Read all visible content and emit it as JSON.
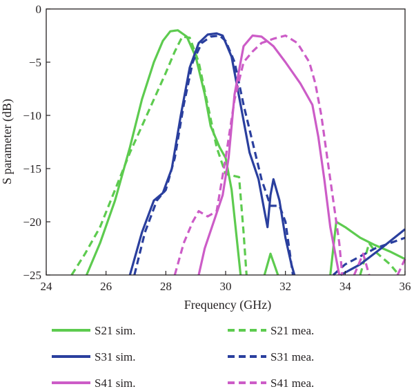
{
  "chart_data": {
    "type": "line",
    "xlabel": "Frequency (GHz)",
    "ylabel": "S parameter (dB)",
    "xlim": [
      24,
      36
    ],
    "ylim": [
      -25,
      0
    ],
    "xticks": [
      "24",
      "26",
      "28",
      "30",
      "32",
      "34",
      "36"
    ],
    "yticks": [
      "0",
      "−5",
      "−10",
      "−15",
      "−20",
      "−25"
    ],
    "grid": false,
    "legend_position": "bottom",
    "colors": {
      "S21": "#5dcb4f",
      "S31": "#2a3f9e",
      "S41": "#cc5cc7"
    },
    "series": [
      {
        "name": "S21 sim.",
        "color": "#5dcb4f",
        "dash": "solid",
        "x": [
          25.35,
          25.8,
          26.3,
          26.8,
          27.2,
          27.6,
          27.9,
          28.15,
          28.4,
          28.7,
          29.0,
          29.3,
          29.5,
          29.8,
          30.0,
          30.2,
          30.35,
          30.5
        ],
        "y": [
          -25,
          -22,
          -18,
          -13,
          -8.5,
          -5,
          -3,
          -2.1,
          -2,
          -2.6,
          -4.5,
          -8,
          -11,
          -13,
          -14,
          -17,
          -21,
          -25
        ]
      },
      {
        "name": "S21 sim.",
        "color": "#5dcb4f",
        "dash": "solid",
        "x": [
          31.3,
          31.5,
          31.75
        ],
        "y": [
          -25,
          -23,
          -25
        ]
      },
      {
        "name": "S21 sim.",
        "color": "#5dcb4f",
        "dash": "solid",
        "x": [
          33.5,
          33.7,
          34.0,
          34.5,
          35.0,
          35.5,
          36.0
        ],
        "y": [
          -25,
          -20,
          -20.5,
          -21.5,
          -22.2,
          -22.8,
          -23.5
        ]
      },
      {
        "name": "S21 mea.",
        "color": "#5dcb4f",
        "dash": "dashed",
        "x": [
          24.85,
          25.3,
          25.8,
          26.3,
          26.8,
          27.2,
          27.6,
          28.0,
          28.3,
          28.55,
          28.8,
          29.1,
          29.4,
          29.7,
          30.0,
          30.45,
          30.6,
          30.7
        ],
        "y": [
          -25,
          -23,
          -20.5,
          -17,
          -13.5,
          -11,
          -8.5,
          -6,
          -4,
          -2.6,
          -2.7,
          -5,
          -9,
          -13,
          -15.5,
          -15.8,
          -21,
          -25
        ]
      },
      {
        "name": "S21 mea.",
        "color": "#5dcb4f",
        "dash": "dashed",
        "x": [
          34.5,
          34.8,
          35.0,
          35.5,
          35.8
        ],
        "y": [
          -25,
          -22,
          -22.8,
          -24,
          -25
        ]
      },
      {
        "name": "S31 sim.",
        "color": "#2a3f9e",
        "dash": "solid",
        "x": [
          26.8,
          27.2,
          27.6,
          27.9,
          28.2,
          28.5,
          28.8,
          29.1,
          29.4,
          29.7,
          29.9,
          30.2,
          30.5,
          30.8,
          31.1,
          31.3,
          31.4,
          31.5,
          31.6,
          31.8,
          32.0,
          32.2,
          32.3
        ],
        "y": [
          -25,
          -21,
          -18,
          -17.3,
          -15,
          -10,
          -5.5,
          -3.2,
          -2.4,
          -2.3,
          -2.5,
          -4.5,
          -9,
          -13.5,
          -16,
          -19,
          -20.5,
          -17.5,
          -16,
          -18,
          -21.5,
          -24,
          -25
        ]
      },
      {
        "name": "S31 sim.",
        "color": "#2a3f9e",
        "dash": "solid",
        "x": [
          33.85,
          34.5,
          35.2,
          36.0
        ],
        "y": [
          -25,
          -24,
          -22.5,
          -20.7
        ]
      },
      {
        "name": "S31 mea.",
        "color": "#2a3f9e",
        "dash": "dashed",
        "x": [
          26.95,
          27.3,
          27.7,
          28.0,
          28.3,
          28.6,
          28.9,
          29.2,
          29.5,
          29.8,
          30.0,
          30.3,
          30.6,
          30.9,
          31.2,
          31.5,
          31.8,
          32.0,
          32.15,
          32.25
        ],
        "y": [
          -25,
          -21,
          -18,
          -17,
          -14,
          -9,
          -5,
          -3.2,
          -2.6,
          -2.5,
          -3,
          -5,
          -9,
          -12.5,
          -16,
          -18.5,
          -18.5,
          -20,
          -23,
          -25
        ]
      },
      {
        "name": "S31 mea.",
        "color": "#2a3f9e",
        "dash": "dashed",
        "x": [
          33.6,
          34.0,
          35.0,
          36.0
        ],
        "y": [
          -25,
          -24,
          -22.5,
          -21.5
        ]
      },
      {
        "name": "S41 sim.",
        "color": "#cc5cc7",
        "dash": "solid",
        "x": [
          29.1,
          29.3,
          29.6,
          29.9,
          30.1,
          30.3,
          30.6,
          30.9,
          31.2,
          31.6,
          32.0,
          32.5,
          32.9,
          33.1,
          33.3,
          33.5,
          33.7,
          33.8
        ],
        "y": [
          -25,
          -22.5,
          -20,
          -17.5,
          -14,
          -8,
          -3.5,
          -2.5,
          -2.6,
          -3.5,
          -5,
          -7,
          -9,
          -12,
          -16,
          -20.5,
          -23.5,
          -25
        ]
      },
      {
        "name": "S41 mea.",
        "color": "#cc5cc7",
        "dash": "dashed",
        "x": [
          28.3,
          28.6,
          28.9,
          29.1,
          29.4,
          29.7,
          30.0,
          30.3,
          30.6,
          30.9,
          31.2,
          31.6,
          32.0,
          32.4,
          32.8,
          33.0,
          33.2,
          33.4,
          33.6,
          33.8,
          33.9
        ],
        "y": [
          -25,
          -22,
          -20,
          -19,
          -19.5,
          -19,
          -14,
          -8.5,
          -5,
          -4,
          -3.2,
          -2.8,
          -2.5,
          -3.2,
          -5,
          -7,
          -10,
          -14,
          -18,
          -22,
          -25
        ]
      },
      {
        "name": "S41 mea.",
        "color": "#cc5cc7",
        "dash": "dashed",
        "x": [
          34.3,
          34.6,
          34.8
        ],
        "y": [
          -25,
          -23,
          -25
        ]
      },
      {
        "name": "S41 mea.",
        "color": "#cc5cc7",
        "dash": "dashed",
        "x": [
          35.75,
          36.0
        ],
        "y": [
          -25,
          -23.5
        ]
      }
    ],
    "legend": [
      {
        "label": "S21 sim.",
        "color": "#5dcb4f",
        "dash": "solid"
      },
      {
        "label": "S21 mea.",
        "color": "#5dcb4f",
        "dash": "dashed"
      },
      {
        "label": "S31 sim.",
        "color": "#2a3f9e",
        "dash": "solid"
      },
      {
        "label": "S31 mea.",
        "color": "#2a3f9e",
        "dash": "dashed"
      },
      {
        "label": "S41 sim.",
        "color": "#cc5cc7",
        "dash": "solid"
      },
      {
        "label": "S41 mea.",
        "color": "#cc5cc7",
        "dash": "dashed"
      }
    ]
  }
}
